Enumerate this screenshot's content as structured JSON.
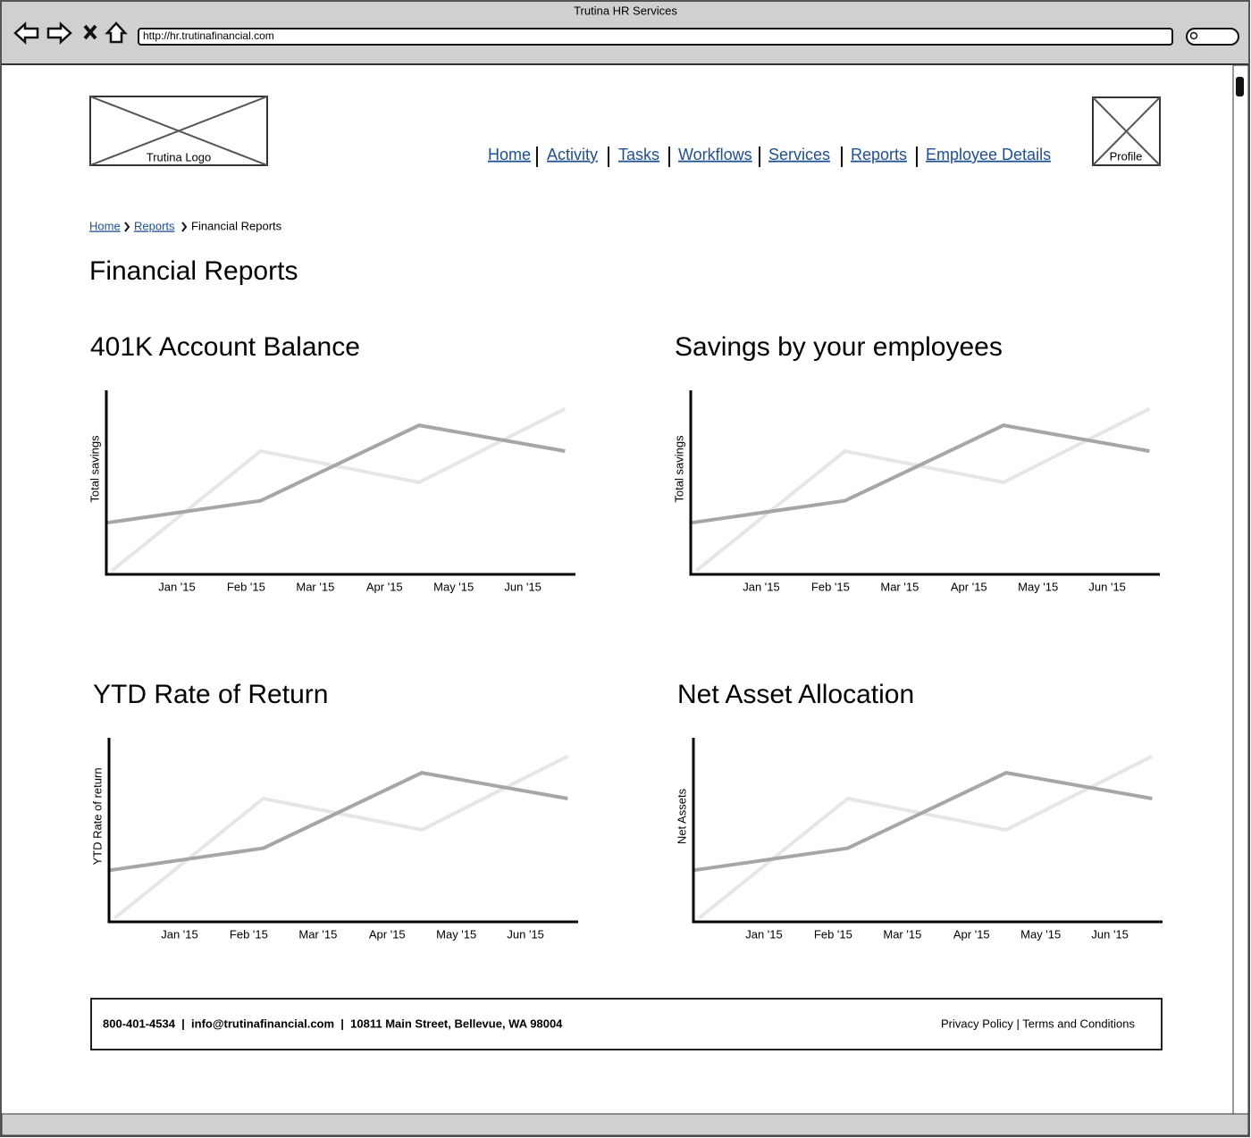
{
  "window": {
    "title": "Trutina HR Services",
    "url": "http://hr.trutinafinancial.com"
  },
  "header": {
    "logo": "Trutina Logo",
    "nav": [
      "Home",
      "Activity",
      "Tasks",
      "Workflows",
      "Services",
      "Reports",
      "Employee Details"
    ],
    "profile": "Profile"
  },
  "breadcrumb": [
    "Home",
    "Reports",
    "Financial Reports"
  ],
  "page_title": "Financial Reports",
  "chart_data": [
    {
      "type": "line",
      "title": "401K Account Balance",
      "y_label": "Total savings",
      "xlim": [
        -1.02,
        5.76
      ],
      "ylim": [
        0,
        100
      ],
      "xticks": [
        {
          "value": 0,
          "label": "Jan '15"
        },
        {
          "value": 1,
          "label": "Feb '15"
        },
        {
          "value": 2,
          "label": "Mar '15"
        },
        {
          "value": 3,
          "label": "Apr '15"
        },
        {
          "value": 4,
          "label": "May '15"
        },
        {
          "value": 5,
          "label": "Jun '15"
        }
      ],
      "series": [
        {
          "color": "#e6e6e6",
          "x": [
            -0.94,
            1.21,
            3.5,
            5.61
          ],
          "values": [
            2,
            67,
            50,
            90
          ]
        },
        {
          "color": "#a6a6a6",
          "x": [
            -1.02,
            1.21,
            3.5,
            5.61
          ],
          "values": [
            28,
            40,
            81,
            67
          ]
        }
      ]
    },
    {
      "type": "line",
      "title": "Savings by your employees",
      "y_label": "Total savings",
      "xlim": [
        -1.02,
        5.76
      ],
      "ylim": [
        0,
        100
      ],
      "xticks": [
        {
          "value": 0,
          "label": "Jan '15"
        },
        {
          "value": 1,
          "label": "Feb '15"
        },
        {
          "value": 2,
          "label": "Mar '15"
        },
        {
          "value": 3,
          "label": "Apr '15"
        },
        {
          "value": 4,
          "label": "May '15"
        },
        {
          "value": 5,
          "label": "Jun '15"
        }
      ],
      "series": [
        {
          "color": "#e6e6e6",
          "x": [
            -0.94,
            1.21,
            3.5,
            5.61
          ],
          "values": [
            2,
            67,
            50,
            90
          ]
        },
        {
          "color": "#a6a6a6",
          "x": [
            -1.02,
            1.21,
            3.5,
            5.61
          ],
          "values": [
            28,
            40,
            81,
            67
          ]
        }
      ]
    },
    {
      "type": "line",
      "title": "YTD Rate of Return",
      "y_label": "YTD Rate of return",
      "xlim": [
        -1.02,
        5.76
      ],
      "ylim": [
        0,
        100
      ],
      "xticks": [
        {
          "value": 0,
          "label": "Jan '15"
        },
        {
          "value": 1,
          "label": "Feb '15"
        },
        {
          "value": 2,
          "label": "Mar '15"
        },
        {
          "value": 3,
          "label": "Apr '15"
        },
        {
          "value": 4,
          "label": "May '15"
        },
        {
          "value": 5,
          "label": "Jun '15"
        }
      ],
      "series": [
        {
          "color": "#e6e6e6",
          "x": [
            -0.94,
            1.21,
            3.5,
            5.61
          ],
          "values": [
            2,
            67,
            50,
            90
          ]
        },
        {
          "color": "#a6a6a6",
          "x": [
            -1.02,
            1.21,
            3.5,
            5.61
          ],
          "values": [
            28,
            40,
            81,
            67
          ]
        }
      ]
    },
    {
      "type": "line",
      "title": "Net Asset Allocation",
      "y_label": "Net Assets",
      "xlim": [
        -1.02,
        5.76
      ],
      "ylim": [
        0,
        100
      ],
      "xticks": [
        {
          "value": 0,
          "label": "Jan '15"
        },
        {
          "value": 1,
          "label": "Feb '15"
        },
        {
          "value": 2,
          "label": "Mar '15"
        },
        {
          "value": 3,
          "label": "Apr '15"
        },
        {
          "value": 4,
          "label": "May '15"
        },
        {
          "value": 5,
          "label": "Jun '15"
        }
      ],
      "series": [
        {
          "color": "#e6e6e6",
          "x": [
            -0.94,
            1.21,
            3.5,
            5.61
          ],
          "values": [
            2,
            67,
            50,
            90
          ]
        },
        {
          "color": "#a6a6a6",
          "x": [
            -1.02,
            1.21,
            3.5,
            5.61
          ],
          "values": [
            28,
            40,
            81,
            67
          ]
        }
      ]
    }
  ],
  "footer": {
    "contact": "800-401-4534  |  info@trutinafinancial.com  |  10811 Main Street, Bellevue, WA 98004",
    "links": "Privacy Policy | Terms and Conditions"
  }
}
